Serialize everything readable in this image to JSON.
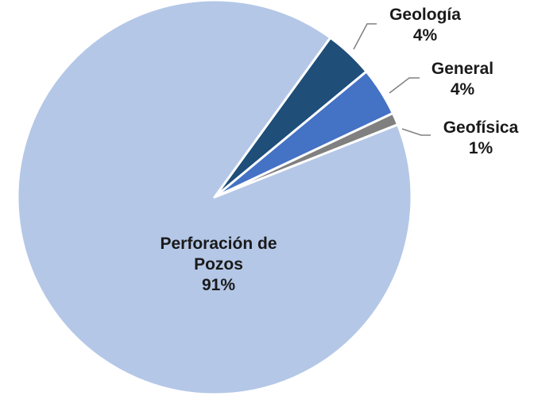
{
  "chart_data": {
    "type": "pie",
    "categories": [
      "Geología",
      "General",
      "Geofísica",
      "Perforación de Pozos"
    ],
    "values": [
      4,
      4,
      1,
      91
    ],
    "value_labels": [
      "4%",
      "4%",
      "1%",
      "91%"
    ],
    "colors": [
      "#1f4e79",
      "#4472c4",
      "#808080",
      "#b4c7e7"
    ]
  }
}
